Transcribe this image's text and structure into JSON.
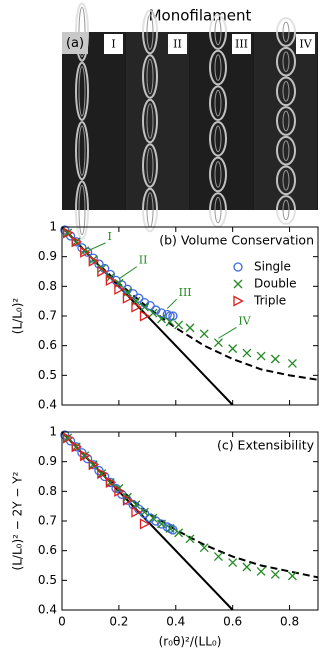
{
  "title": "Monofilament",
  "panel_a": {
    "label": "(a)",
    "frames": [
      "I",
      "II",
      "III",
      "IV"
    ]
  },
  "chart_data": [
    {
      "type": "scatter",
      "title": "(b) Volume Conservation",
      "ylabel": "(L/L₀)²",
      "xlim": [
        0,
        0.9
      ],
      "ylim": [
        0.4,
        1.0
      ],
      "xticks": [
        0,
        0.2,
        0.4,
        0.6,
        0.8
      ],
      "xtick_labels": false,
      "yticks": [
        0.4,
        0.5,
        0.6,
        0.7,
        0.8,
        0.9,
        1.0
      ],
      "legend": "upper right",
      "annotations": [
        "I",
        "II",
        "III",
        "IV"
      ],
      "annotation_color": "#228b22",
      "series": [
        {
          "name": "Single",
          "color": "#4169e1",
          "marker": "circle",
          "x": [
            0.01,
            0.03,
            0.05,
            0.07,
            0.09,
            0.11,
            0.13,
            0.15,
            0.17,
            0.19,
            0.21,
            0.23,
            0.25,
            0.27,
            0.29,
            0.31,
            0.33,
            0.35,
            0.37,
            0.38,
            0.39
          ],
          "values": [
            0.99,
            0.97,
            0.95,
            0.93,
            0.915,
            0.895,
            0.875,
            0.86,
            0.84,
            0.82,
            0.805,
            0.79,
            0.775,
            0.76,
            0.745,
            0.735,
            0.72,
            0.71,
            0.705,
            0.7,
            0.7
          ]
        },
        {
          "name": "Double",
          "color": "#228b22",
          "marker": "x",
          "x": [
            0.02,
            0.05,
            0.08,
            0.11,
            0.14,
            0.17,
            0.2,
            0.23,
            0.26,
            0.29,
            0.32,
            0.35,
            0.38,
            0.41,
            0.45,
            0.5,
            0.55,
            0.6,
            0.65,
            0.7,
            0.75,
            0.81
          ],
          "values": [
            0.98,
            0.95,
            0.92,
            0.89,
            0.86,
            0.83,
            0.81,
            0.78,
            0.75,
            0.73,
            0.71,
            0.69,
            0.68,
            0.67,
            0.66,
            0.64,
            0.61,
            0.59,
            0.575,
            0.565,
            0.555,
            0.54
          ]
        },
        {
          "name": "Triple",
          "color": "#e02020",
          "marker": "triangle-right",
          "x": [
            0.02,
            0.05,
            0.08,
            0.11,
            0.14,
            0.17,
            0.2,
            0.23,
            0.26,
            0.29
          ],
          "values": [
            0.98,
            0.95,
            0.915,
            0.885,
            0.85,
            0.82,
            0.79,
            0.76,
            0.73,
            0.7
          ]
        }
      ],
      "lines": [
        {
          "color": "#000000",
          "style": "solid",
          "x": [
            0,
            0.6
          ],
          "values": [
            1.0,
            0.4
          ]
        },
        {
          "color": "#000000",
          "style": "dashed",
          "x": [
            0,
            0.1,
            0.2,
            0.3,
            0.4,
            0.5,
            0.6,
            0.7,
            0.8,
            0.9
          ],
          "values": [
            1.0,
            0.9,
            0.81,
            0.73,
            0.66,
            0.6,
            0.555,
            0.52,
            0.5,
            0.485
          ]
        }
      ]
    },
    {
      "type": "scatter",
      "title": "(c) Extensibility",
      "ylabel": "(L/L₀)² − 2Y − Y²",
      "xlabel": "(r₀θ)²/(LL₀)",
      "xlim": [
        0,
        0.9
      ],
      "ylim": [
        0.4,
        1.0
      ],
      "xticks": [
        0,
        0.2,
        0.4,
        0.6,
        0.8
      ],
      "xtick_labels": true,
      "yticks": [
        0.4,
        0.5,
        0.6,
        0.7,
        0.8,
        0.9,
        1.0
      ],
      "series": [
        {
          "name": "Single",
          "color": "#4169e1",
          "marker": "circle",
          "x": [
            0.01,
            0.03,
            0.05,
            0.07,
            0.09,
            0.11,
            0.13,
            0.15,
            0.17,
            0.19,
            0.21,
            0.23,
            0.25,
            0.27,
            0.29,
            0.31,
            0.33,
            0.35,
            0.37,
            0.38,
            0.39
          ],
          "values": [
            0.99,
            0.97,
            0.95,
            0.93,
            0.91,
            0.89,
            0.87,
            0.85,
            0.83,
            0.81,
            0.79,
            0.77,
            0.755,
            0.74,
            0.725,
            0.71,
            0.7,
            0.69,
            0.68,
            0.675,
            0.67
          ]
        },
        {
          "name": "Double",
          "color": "#228b22",
          "marker": "x",
          "x": [
            0.02,
            0.05,
            0.08,
            0.11,
            0.14,
            0.17,
            0.2,
            0.23,
            0.26,
            0.29,
            0.32,
            0.35,
            0.38,
            0.41,
            0.45,
            0.5,
            0.55,
            0.6,
            0.65,
            0.7,
            0.75,
            0.81
          ],
          "values": [
            0.98,
            0.95,
            0.92,
            0.89,
            0.86,
            0.83,
            0.81,
            0.78,
            0.755,
            0.73,
            0.71,
            0.69,
            0.675,
            0.66,
            0.64,
            0.61,
            0.58,
            0.56,
            0.545,
            0.53,
            0.52,
            0.515
          ]
        },
        {
          "name": "Triple",
          "color": "#e02020",
          "marker": "triangle-right",
          "x": [
            0.02,
            0.05,
            0.08,
            0.11,
            0.14,
            0.17,
            0.2,
            0.23,
            0.26,
            0.29
          ],
          "values": [
            0.98,
            0.95,
            0.92,
            0.89,
            0.86,
            0.83,
            0.8,
            0.77,
            0.73,
            0.69
          ]
        }
      ],
      "lines": [
        {
          "color": "#000000",
          "style": "solid",
          "x": [
            0,
            0.6
          ],
          "values": [
            1.0,
            0.4
          ]
        },
        {
          "color": "#000000",
          "style": "dashed",
          "x": [
            0,
            0.1,
            0.2,
            0.3,
            0.4,
            0.5,
            0.6,
            0.7,
            0.8,
            0.9
          ],
          "values": [
            1.0,
            0.9,
            0.81,
            0.73,
            0.67,
            0.62,
            0.58,
            0.55,
            0.53,
            0.51
          ]
        }
      ]
    }
  ]
}
